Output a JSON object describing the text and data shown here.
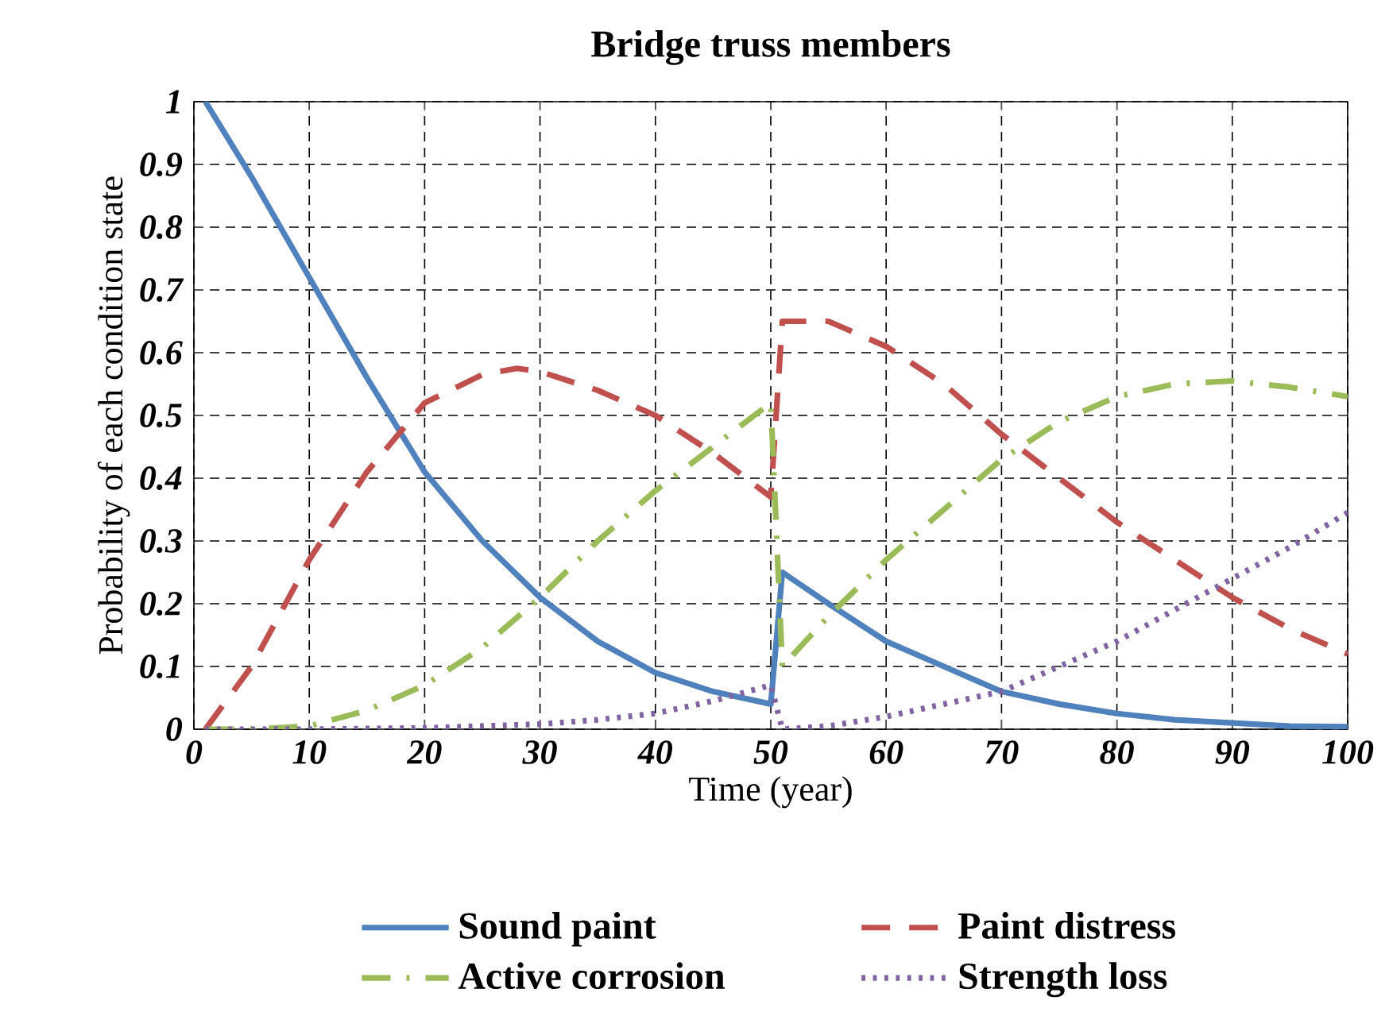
{
  "chart_data": {
    "type": "line",
    "title": "Bridge truss members",
    "xlabel": "Time (year)",
    "ylabel": "Probability of each condition state",
    "xlim": [
      0,
      100
    ],
    "ylim": [
      0,
      1
    ],
    "xticks": [
      0,
      10,
      20,
      30,
      40,
      50,
      60,
      70,
      80,
      90,
      100
    ],
    "yticks": [
      0,
      0.1,
      0.2,
      0.3,
      0.4,
      0.5,
      0.6,
      0.7,
      0.8,
      0.9,
      1
    ],
    "grid": true,
    "legend": "bottom",
    "marker": "none",
    "series": [
      {
        "name": "Sound paint",
        "color": "#4f81bd",
        "line_style": "solid",
        "x": [
          1,
          5,
          10,
          15,
          20,
          25,
          30,
          35,
          40,
          45,
          50,
          51,
          55,
          60,
          65,
          70,
          75,
          80,
          85,
          90,
          95,
          100
        ],
        "values": [
          1,
          0.88,
          0.72,
          0.56,
          0.41,
          0.3,
          0.21,
          0.14,
          0.09,
          0.06,
          0.04,
          0.25,
          0.2,
          0.14,
          0.1,
          0.06,
          0.04,
          0.025,
          0.015,
          0.01,
          0.005,
          0.004
        ]
      },
      {
        "name": "Paint distress",
        "color": "#c0504d",
        "line_style": "dashed",
        "x": [
          1,
          5,
          10,
          15,
          20,
          25,
          28,
          30,
          35,
          40,
          45,
          50,
          51,
          55,
          60,
          65,
          70,
          75,
          80,
          85,
          90,
          95,
          100
        ],
        "values": [
          0,
          0.1,
          0.27,
          0.41,
          0.52,
          0.565,
          0.575,
          0.57,
          0.54,
          0.5,
          0.44,
          0.37,
          0.65,
          0.65,
          0.61,
          0.55,
          0.47,
          0.4,
          0.33,
          0.27,
          0.21,
          0.16,
          0.12
        ]
      },
      {
        "name": "Active corrosion",
        "color": "#9bbb59",
        "line_style": "dashdot",
        "x": [
          1,
          5,
          10,
          15,
          20,
          25,
          30,
          35,
          40,
          45,
          50,
          51,
          55,
          60,
          65,
          70,
          75,
          80,
          85,
          90,
          95,
          100
        ],
        "values": [
          0,
          0,
          0.005,
          0.03,
          0.07,
          0.13,
          0.21,
          0.3,
          0.38,
          0.45,
          0.52,
          0.1,
          0.18,
          0.27,
          0.35,
          0.43,
          0.49,
          0.53,
          0.55,
          0.555,
          0.545,
          0.53
        ]
      },
      {
        "name": "Strength loss",
        "color": "#8064a2",
        "line_style": "dotted",
        "x": [
          1,
          10,
          20,
          30,
          35,
          40,
          45,
          50,
          51,
          55,
          60,
          65,
          70,
          75,
          80,
          85,
          90,
          95,
          100
        ],
        "values": [
          0,
          0,
          0.002,
          0.008,
          0.015,
          0.025,
          0.045,
          0.07,
          0,
          0.005,
          0.02,
          0.04,
          0.06,
          0.1,
          0.14,
          0.19,
          0.24,
          0.29,
          0.345
        ]
      }
    ]
  }
}
